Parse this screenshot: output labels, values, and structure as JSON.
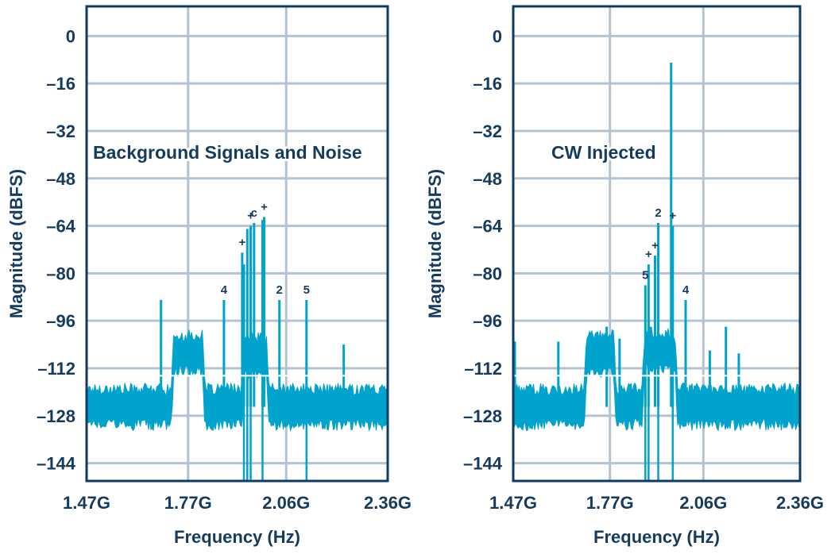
{
  "colors": {
    "axis": "#0f3b63",
    "grid": "#b4c3d1",
    "trace": "#00a3cc",
    "text": "#163b5e",
    "background": "#ffffff"
  },
  "chart_data": [
    {
      "type": "line",
      "title": "Background Signals and Noise",
      "xlabel": "Frequency (Hz)",
      "ylabel": "Magnitude (dBFS)",
      "xlim": [
        1.47,
        2.36
      ],
      "ylim": [
        -150,
        10
      ],
      "x_ticks": [
        1.47,
        1.77,
        2.06,
        2.36
      ],
      "x_tick_labels": [
        "1.47G",
        "1.77G",
        "2.06G",
        "2.36G"
      ],
      "y_ticks": [
        0,
        -16,
        -32,
        -48,
        -64,
        -80,
        -96,
        -112,
        -128,
        -144
      ],
      "y_tick_labels": [
        "0",
        "–16",
        "–32",
        "–48",
        "–64",
        "–80",
        "–96",
        "–112",
        "–128",
        "–144"
      ],
      "noise_floor_dbfs": -125,
      "elevated_bands": [
        {
          "x_start": 1.72,
          "x_end": 1.82,
          "level_dbfs": -107
        },
        {
          "x_start": 1.93,
          "x_end": 2.01,
          "level_dbfs": -108
        }
      ],
      "spurs": [
        {
          "x": 1.69,
          "y": -89
        },
        {
          "x": 1.876,
          "y": -89,
          "label": "4"
        },
        {
          "x": 1.93,
          "y": -73,
          "label": "+"
        },
        {
          "x": 1.935,
          "y": -77
        },
        {
          "x": 1.945,
          "y": -65
        },
        {
          "x": 1.955,
          "y": -64,
          "label": "+"
        },
        {
          "x": 1.965,
          "y": -63,
          "label": "c"
        },
        {
          "x": 1.99,
          "y": -62
        },
        {
          "x": 1.995,
          "y": -61,
          "label": "+"
        },
        {
          "x": 2.04,
          "y": -89,
          "label": "2"
        },
        {
          "x": 2.12,
          "y": -89,
          "label": "5"
        },
        {
          "x": 2.23,
          "y": -104
        }
      ]
    },
    {
      "type": "line",
      "title": "CW Injected",
      "xlabel": "Frequency (Hz)",
      "ylabel": "Magnitude (dBFS)",
      "xlim": [
        1.47,
        2.36
      ],
      "ylim": [
        -150,
        10
      ],
      "x_ticks": [
        1.47,
        1.77,
        2.06,
        2.36
      ],
      "x_tick_labels": [
        "1.47G",
        "1.77G",
        "2.06G",
        "2.36G"
      ],
      "y_ticks": [
        0,
        -16,
        -32,
        -48,
        -64,
        -80,
        -96,
        -112,
        -128,
        -144
      ],
      "y_tick_labels": [
        "0",
        "–16",
        "–32",
        "–48",
        "–64",
        "–80",
        "–96",
        "–112",
        "–128",
        "–144"
      ],
      "noise_floor_dbfs": -125,
      "elevated_bands": [
        {
          "x_start": 1.69,
          "x_end": 1.79,
          "level_dbfs": -107
        },
        {
          "x_start": 1.87,
          "x_end": 1.98,
          "level_dbfs": -106
        }
      ],
      "spurs": [
        {
          "x": 1.475,
          "y": -103
        },
        {
          "x": 1.61,
          "y": -103
        },
        {
          "x": 1.76,
          "y": -98
        },
        {
          "x": 1.8,
          "y": -102
        },
        {
          "x": 1.88,
          "y": -84,
          "label": "5"
        },
        {
          "x": 1.89,
          "y": -77,
          "label": "+"
        },
        {
          "x": 1.91,
          "y": -74,
          "label": "+"
        },
        {
          "x": 1.92,
          "y": -63,
          "label": "2"
        },
        {
          "x": 1.96,
          "y": -9
        },
        {
          "x": 1.965,
          "y": -64,
          "label": "+"
        },
        {
          "x": 2.005,
          "y": -89,
          "label": "4"
        },
        {
          "x": 2.08,
          "y": -106
        },
        {
          "x": 2.13,
          "y": -98
        },
        {
          "x": 2.17,
          "y": -107
        }
      ]
    }
  ]
}
